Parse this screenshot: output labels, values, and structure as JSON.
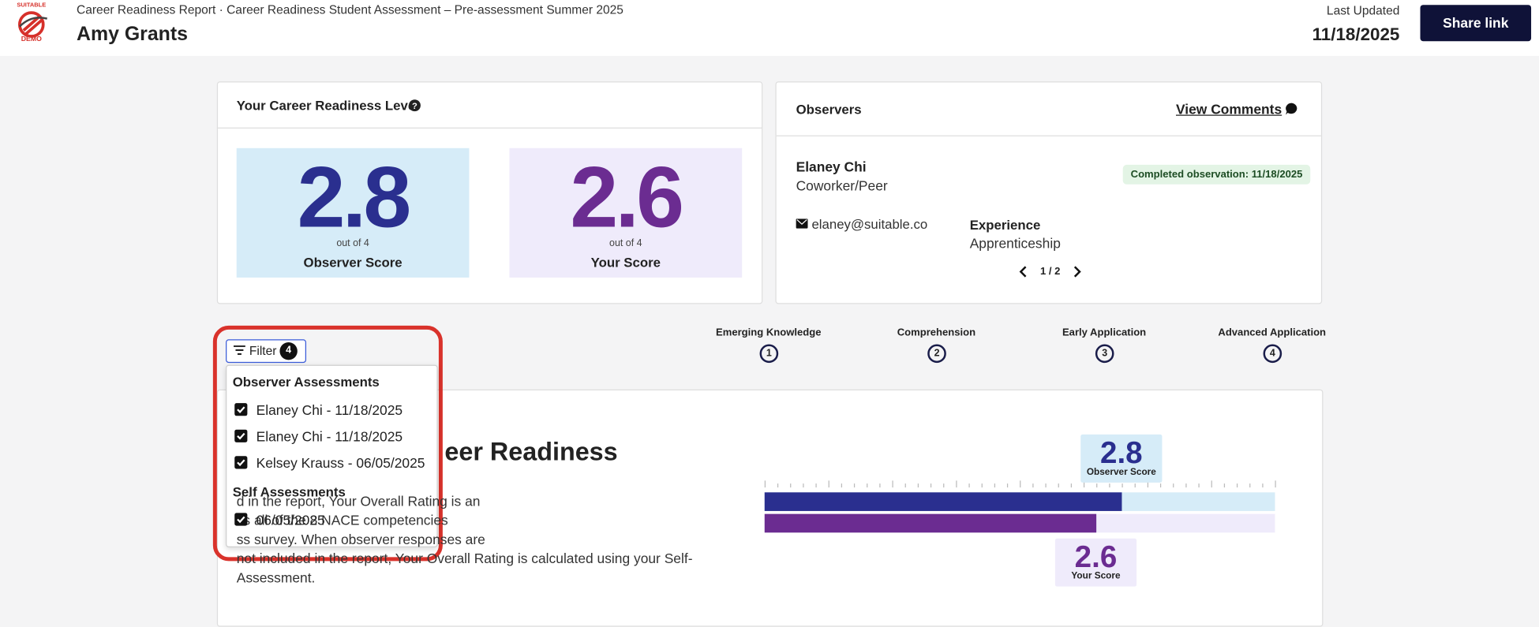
{
  "header": {
    "logo_top": "SUITABLE",
    "logo_bottom": "DEMO",
    "breadcrumb": "Career Readiness Report · Career Readiness Student Assessment – Pre-assessment Summer 2025",
    "name": "Amy Grants",
    "last_updated_label": "Last Updated",
    "last_updated": "11/18/2025",
    "share_button": "Share link"
  },
  "level_card": {
    "title": "Your Career Readiness Level",
    "observer": {
      "score": 2.8,
      "out_of": "out of 4",
      "label": "Observer Score"
    },
    "self": {
      "score": 2.6,
      "out_of": "out of 4",
      "label": "Your Score"
    }
  },
  "observers_card": {
    "title": "Observers",
    "view_comments": "View Comments",
    "observer": {
      "name": "Elaney Chi",
      "role": "Coworker/Peer",
      "status": "Completed observation: 11/18/2025",
      "email": "elaney@suitable.co",
      "experience_label": "Experience",
      "experience": "Apprenticeship"
    },
    "pagination": "1 / 2"
  },
  "scale": {
    "levels": [
      {
        "label": "Emerging Knowledge",
        "number": 1
      },
      {
        "label": "Comprehension",
        "number": 2
      },
      {
        "label": "Early Application",
        "number": 3
      },
      {
        "label": "Advanced Application",
        "number": 4
      }
    ]
  },
  "overall": {
    "heading": "eer Readiness",
    "lines": [
      "d in the report, Your Overall Rating is an",
      "ss all of the 8 NACE competencies",
      "ss survey. When observer responses are",
      "not included in the report, Your Overall Rating is calculated using your Self-",
      "Assessment."
    ]
  },
  "filter": {
    "button": "Filter",
    "count": 4,
    "groups": [
      {
        "title": "Observer Assessments",
        "items": [
          "Elaney Chi - 11/18/2025",
          "Elaney Chi - 11/18/2025",
          "Kelsey Krauss - 06/05/2025"
        ]
      },
      {
        "title": "Self Assessments",
        "items": [
          "06/05/2025"
        ]
      }
    ]
  }
}
